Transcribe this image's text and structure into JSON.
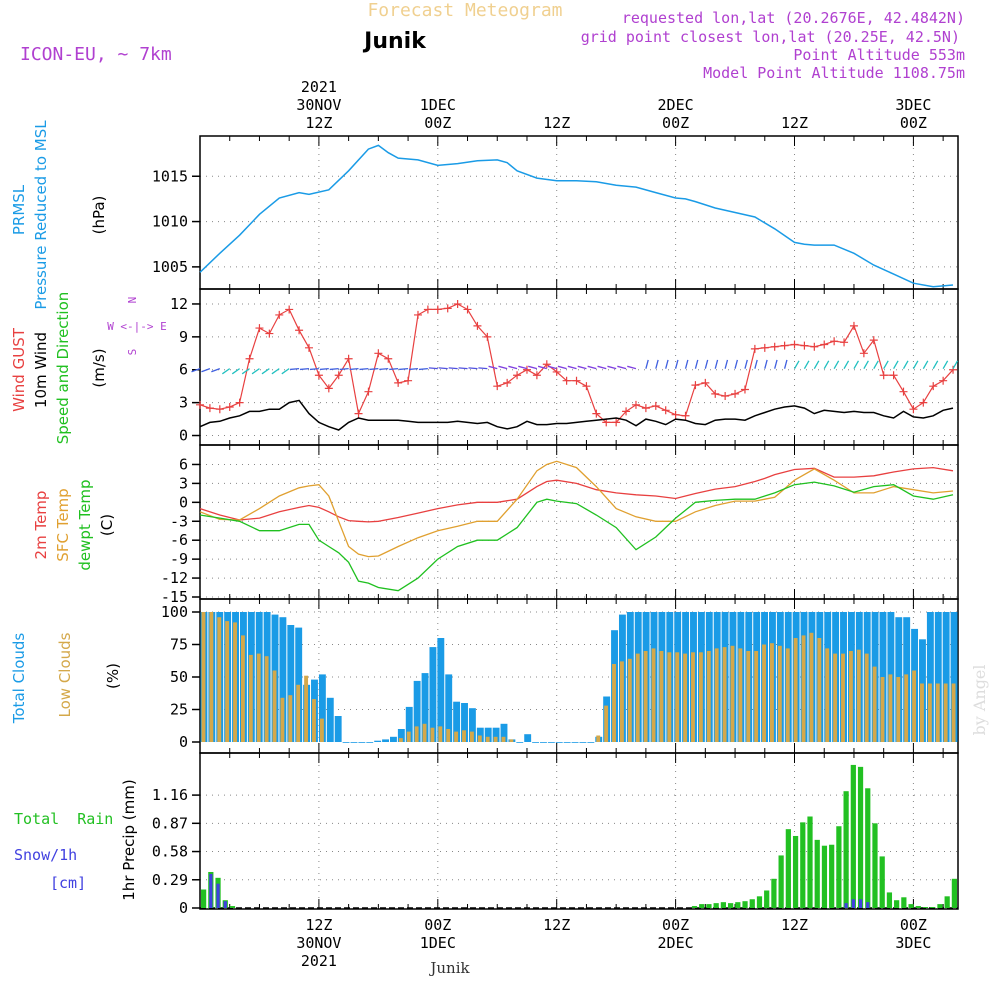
{
  "header": {
    "banner": "Forecast Meteogram",
    "location": "Junik",
    "model": "ICON-EU, ~ 7km",
    "requested": "requested lon,lat (20.2676E, 42.4842N)",
    "closest": "grid point closest lon,lat (20.25E, 42.5N)",
    "point_alt": "Point Altitude 553m",
    "model_alt": "Model Point Altitude 1108.75m",
    "credit": "by Angel",
    "footer_location": "Junik"
  },
  "colors": {
    "pressure": "#1a9be6",
    "gust": "#e84040",
    "wind": "#000000",
    "temp2m": "#e84040",
    "sfc": "#e0a030",
    "dew": "#20c020",
    "total_cloud": "#1a9be6",
    "low_cloud": "#d4a84a",
    "rain": "#22c022",
    "snow": "#4040e0",
    "purple": "#b040d0"
  },
  "time_axis": {
    "top": [
      {
        "t": 12,
        "lines": [
          "2021",
          "30NOV",
          "12Z"
        ]
      },
      {
        "t": 24,
        "lines": [
          "1DEC",
          "00Z"
        ]
      },
      {
        "t": 36,
        "lines": [
          "12Z"
        ]
      },
      {
        "t": 48,
        "lines": [
          "2DEC",
          "00Z"
        ]
      },
      {
        "t": 60,
        "lines": [
          "12Z"
        ]
      },
      {
        "t": 72,
        "lines": [
          "3DEC",
          "00Z"
        ]
      }
    ],
    "bottom": [
      {
        "t": 12,
        "lines": [
          "12Z",
          "30NOV",
          "2021"
        ]
      },
      {
        "t": 24,
        "lines": [
          "00Z",
          "1DEC"
        ]
      },
      {
        "t": 36,
        "lines": [
          "12Z"
        ]
      },
      {
        "t": 48,
        "lines": [
          "00Z",
          "2DEC"
        ]
      },
      {
        "t": 60,
        "lines": [
          "12Z"
        ]
      },
      {
        "t": 72,
        "lines": [
          "00Z",
          "3DEC"
        ]
      }
    ]
  },
  "panel_labels": {
    "pressure": {
      "l1": "PRMSL",
      "l2": "Pressure Reduced to MSL",
      "unit": "(hPa)"
    },
    "wind": {
      "l1": "Wind GUST",
      "l2": "10m Wind",
      "l3": "Speed and Direction",
      "unit": "(m/s)",
      "compass_n": "N",
      "compass_we": "W <-|-> E",
      "compass_s": "S"
    },
    "temp": {
      "l1": "2m Temp",
      "l2": "SFC Temp",
      "l3": "dewpt Temp",
      "unit": "(C)"
    },
    "cloud": {
      "l1": "Total Clouds",
      "l2": "Low Clouds",
      "unit": "(%)"
    },
    "precip": {
      "l1": "Total  Rain",
      "l2": "Snow/1h",
      "l3": "[cm]",
      "unit": "1hr Precip (mm)"
    }
  },
  "chart_data": [
    {
      "type": "line",
      "name": "PRMSL",
      "ylim": [
        1003,
        1019
      ],
      "yticks": [
        1005,
        1010,
        1015
      ],
      "x": [
        0,
        2,
        4,
        6,
        8,
        10,
        11,
        13,
        15,
        17,
        18,
        19,
        20,
        22,
        24,
        26,
        28,
        30,
        31,
        32,
        34,
        36,
        38,
        40,
        42,
        44,
        46,
        48,
        49,
        50,
        52,
        54,
        56,
        58,
        60,
        61,
        62,
        64,
        66,
        68,
        70,
        72,
        74,
        75,
        76
      ],
      "series": [
        {
          "values": [
            1004.4,
            1006.5,
            1008.5,
            1010.8,
            1012.6,
            1013.2,
            1013.0,
            1013.5,
            1015.6,
            1018.0,
            1018.4,
            1017.6,
            1017.0,
            1016.8,
            1016.2,
            1016.4,
            1016.7,
            1016.8,
            1016.5,
            1015.6,
            1014.8,
            1014.5,
            1014.5,
            1014.4,
            1014.0,
            1013.8,
            1013.2,
            1012.6,
            1012.5,
            1012.2,
            1011.5,
            1011.0,
            1010.5,
            1009.2,
            1007.7,
            1007.5,
            1007.4,
            1007.4,
            1006.5,
            1005.2,
            1004.2,
            1003.2,
            1002.8,
            1002.9,
            1003.0
          ]
        }
      ]
    },
    {
      "type": "line",
      "name": "Wind",
      "ylim": [
        -0.5,
        13
      ],
      "yticks": [
        0,
        3,
        6,
        9,
        12
      ],
      "x": [
        0,
        1,
        2,
        3,
        4,
        5,
        6,
        7,
        8,
        9,
        10,
        11,
        12,
        13,
        14,
        15,
        16,
        17,
        18,
        19,
        20,
        21,
        22,
        23,
        24,
        25,
        26,
        27,
        28,
        29,
        30,
        31,
        32,
        33,
        34,
        35,
        36,
        37,
        38,
        39,
        40,
        41,
        42,
        43,
        44,
        45,
        46,
        47,
        48,
        49,
        50,
        51,
        52,
        53,
        54,
        55,
        56,
        57,
        58,
        59,
        60,
        61,
        62,
        63,
        64,
        65,
        66,
        67,
        68,
        69,
        70,
        71,
        72,
        73,
        74,
        75,
        76
      ],
      "series": [
        {
          "name": "Wind GUST",
          "values": [
            2.8,
            2.5,
            2.4,
            2.6,
            3.0,
            7.0,
            9.8,
            9.3,
            11.0,
            11.5,
            9.6,
            8.0,
            5.5,
            4.3,
            5.5,
            7.0,
            2.0,
            4.0,
            7.5,
            7.0,
            4.8,
            5.0,
            11.0,
            11.5,
            11.5,
            11.6,
            12.0,
            11.5,
            10.0,
            9.0,
            4.5,
            4.8,
            5.5,
            6.0,
            5.5,
            6.5,
            5.8,
            5.0,
            5.0,
            4.5,
            2.0,
            1.2,
            1.2,
            2.2,
            2.8,
            2.5,
            2.7,
            2.3,
            1.9,
            1.8,
            4.6,
            4.8,
            3.8,
            3.6,
            3.8,
            4.2,
            7.9,
            8.0,
            8.1,
            8.2,
            8.3,
            8.2,
            8.1,
            8.3,
            8.6,
            8.5,
            10.0,
            7.5,
            8.7,
            5.5,
            5.5,
            4.0,
            2.4,
            3.0,
            4.5,
            5.0,
            6.0
          ]
        },
        {
          "name": "10m Wind",
          "values": [
            0.8,
            1.2,
            1.3,
            1.6,
            1.8,
            2.2,
            2.2,
            2.4,
            2.4,
            3.0,
            3.2,
            2.0,
            1.2,
            0.8,
            0.5,
            1.2,
            1.6,
            1.4,
            1.4,
            1.4,
            1.4,
            1.3,
            1.2,
            1.2,
            1.2,
            1.2,
            1.3,
            1.2,
            1.1,
            1.2,
            0.8,
            0.6,
            0.8,
            1.3,
            1.0,
            1.0,
            1.1,
            1.1,
            1.2,
            1.3,
            1.4,
            1.5,
            1.6,
            1.4,
            0.9,
            1.5,
            1.3,
            1.0,
            1.5,
            1.4,
            1.1,
            1.0,
            1.4,
            1.5,
            1.5,
            1.4,
            1.8,
            2.1,
            2.4,
            2.6,
            2.7,
            2.5,
            2.0,
            2.3,
            2.2,
            2.1,
            2.2,
            2.1,
            2.1,
            1.8,
            1.6,
            2.2,
            1.7,
            1.6,
            1.8,
            2.3,
            2.5
          ]
        }
      ]
    },
    {
      "type": "line",
      "name": "Temperature",
      "ylim": [
        -15,
        7.5
      ],
      "yticks": [
        -15,
        -12,
        -9,
        -6,
        -3,
        0,
        3,
        6
      ],
      "x": [
        0,
        2,
        4,
        6,
        8,
        10,
        11,
        12,
        13,
        14,
        15,
        16,
        17,
        18,
        20,
        22,
        24,
        26,
        28,
        30,
        32,
        34,
        35,
        36,
        38,
        40,
        42,
        44,
        46,
        48,
        50,
        52,
        54,
        56,
        57,
        58,
        60,
        62,
        64,
        66,
        68,
        70,
        72,
        74,
        76
      ],
      "series": [
        {
          "name": "2m Temp",
          "values": [
            -1.0,
            -2.0,
            -2.8,
            -2.5,
            -1.5,
            -0.8,
            -0.5,
            -0.8,
            -1.5,
            -2.3,
            -2.9,
            -3.0,
            -3.1,
            -3.0,
            -2.4,
            -1.7,
            -1.0,
            -0.4,
            0.0,
            0.0,
            0.5,
            2.5,
            3.3,
            3.5,
            3.0,
            2.0,
            1.5,
            1.2,
            1.0,
            0.6,
            1.4,
            2.1,
            2.5,
            3.3,
            3.8,
            4.4,
            5.2,
            5.4,
            4.0,
            4.0,
            4.2,
            4.8,
            5.3,
            5.5,
            5.0
          ]
        },
        {
          "name": "SFC Temp",
          "values": [
            -1.5,
            -2.7,
            -2.8,
            -1.0,
            1.0,
            2.3,
            2.6,
            2.8,
            1.0,
            -3.0,
            -7.0,
            -8.2,
            -8.6,
            -8.5,
            -7.0,
            -5.6,
            -4.5,
            -3.8,
            -3.0,
            -3.0,
            0.5,
            5.0,
            6.0,
            6.5,
            5.5,
            2.5,
            -1.0,
            -2.3,
            -3.0,
            -3.0,
            -1.5,
            -0.5,
            0.2,
            0.2,
            0.5,
            0.8,
            3.5,
            5.3,
            3.5,
            1.5,
            1.5,
            2.5,
            2.0,
            1.5,
            1.8
          ]
        },
        {
          "name": "dewpt Temp",
          "values": [
            -2.0,
            -2.5,
            -3.0,
            -4.5,
            -4.5,
            -3.5,
            -3.5,
            -6.0,
            -7.0,
            -8.0,
            -9.5,
            -12.5,
            -12.8,
            -13.5,
            -14.0,
            -12.0,
            -9.0,
            -7.0,
            -6.0,
            -6.0,
            -4.0,
            0.0,
            0.5,
            0.2,
            -0.2,
            -2.0,
            -4.0,
            -7.5,
            -5.5,
            -2.5,
            0.0,
            0.3,
            0.5,
            0.5,
            1.0,
            1.5,
            2.8,
            3.2,
            2.6,
            1.6,
            2.5,
            2.8,
            1.0,
            0.5,
            1.2
          ]
        }
      ]
    },
    {
      "type": "bar",
      "name": "Clouds",
      "ylim": [
        0,
        100
      ],
      "yticks": [
        0,
        25,
        50,
        75,
        100
      ],
      "x_start": 0,
      "x_step": 1,
      "series": [
        {
          "name": "Total Clouds",
          "values": [
            100,
            100,
            100,
            100,
            100,
            100,
            100,
            100,
            100,
            98,
            96,
            90,
            88,
            44,
            48,
            52,
            34,
            20,
            0,
            0,
            0,
            0,
            1,
            2,
            4,
            10,
            27,
            47,
            53,
            73,
            80,
            52,
            31,
            30,
            26,
            11,
            11,
            11,
            14,
            2,
            0,
            6,
            0,
            0,
            0,
            0,
            0,
            0,
            0,
            0,
            4,
            35,
            86,
            98,
            100,
            100,
            100,
            100,
            100,
            100,
            100,
            100,
            100,
            100,
            100,
            100,
            100,
            100,
            100,
            100,
            100,
            100,
            100,
            100,
            100,
            100,
            100,
            100,
            100,
            100,
            100,
            100,
            100,
            100,
            100,
            100,
            100,
            100,
            96,
            96,
            87,
            79,
            100,
            100,
            100,
            100
          ]
        },
        {
          "name": "Low Clouds",
          "values": [
            100,
            100,
            96,
            93,
            92,
            82,
            67,
            68,
            66,
            55,
            34,
            36,
            44,
            51,
            33,
            18,
            0,
            0,
            0,
            0,
            0,
            0,
            0,
            0,
            0,
            3,
            8,
            12,
            14,
            11,
            12,
            10,
            8,
            9,
            8,
            5,
            4,
            4,
            4,
            2,
            0,
            0,
            0,
            0,
            0,
            0,
            0,
            0,
            0,
            0,
            5,
            28,
            60,
            62,
            64,
            68,
            70,
            72,
            70,
            69,
            69,
            68,
            69,
            69,
            70,
            72,
            73,
            74,
            72,
            70,
            70,
            75,
            76,
            74,
            72,
            80,
            82,
            84,
            80,
            72,
            68,
            68,
            70,
            71,
            68,
            58,
            50,
            52,
            50,
            52,
            55,
            45,
            45,
            45,
            45,
            45
          ]
        }
      ]
    },
    {
      "type": "bar",
      "name": "Precipitation",
      "ylim": [
        0,
        1.5
      ],
      "yticks": [
        0,
        0.29,
        0.58,
        0.87,
        1.16
      ],
      "x_start": 0,
      "x_step": 1,
      "series": [
        {
          "name": "Total Rain",
          "values": [
            0.19,
            0.37,
            0.31,
            0.08,
            0.02,
            0,
            0,
            0,
            0,
            0,
            0,
            0,
            0,
            0,
            0,
            0,
            0,
            0,
            0,
            0,
            0,
            0,
            0,
            0,
            0,
            0,
            0,
            0,
            0,
            0,
            0,
            0,
            0,
            0,
            0,
            0,
            0,
            0,
            0,
            0,
            0,
            0,
            0,
            0,
            0,
            0,
            0,
            0,
            0,
            0,
            0,
            0,
            0,
            0,
            0,
            0,
            0,
            0,
            0,
            0,
            0,
            0,
            0,
            0,
            0,
            0,
            0,
            0,
            0.02,
            0.04,
            0.04,
            0.05,
            0.06,
            0.05,
            0.06,
            0.07,
            0.09,
            0.12,
            0.18,
            0.3,
            0.54,
            0.81,
            0.74,
            0.88,
            0.94,
            0.7,
            0.64,
            0.65,
            0.84,
            1.2,
            1.47,
            1.45,
            1.23,
            0.87,
            0.53,
            0.16,
            0.08,
            0.11,
            0.04,
            0.02,
            0.01,
            0.01,
            0.04,
            0.12,
            0.3
          ]
        },
        {
          "name": "Snow/1h",
          "values": [
            0,
            0.35,
            0.25,
            0.07,
            0,
            0,
            0,
            0,
            0,
            0,
            0,
            0,
            0,
            0,
            0,
            0,
            0,
            0,
            0,
            0,
            0,
            0,
            0,
            0,
            0,
            0,
            0,
            0,
            0,
            0,
            0,
            0,
            0,
            0,
            0,
            0,
            0,
            0,
            0,
            0,
            0,
            0,
            0,
            0,
            0,
            0,
            0,
            0,
            0,
            0,
            0,
            0,
            0,
            0,
            0,
            0,
            0,
            0,
            0,
            0,
            0,
            0,
            0,
            0,
            0,
            0,
            0,
            0,
            0,
            0,
            0,
            0,
            0,
            0,
            0,
            0,
            0,
            0,
            0,
            0,
            0,
            0,
            0,
            0,
            0,
            0,
            0,
            0,
            0,
            0.05,
            0.09,
            0.09,
            0.06,
            0,
            0,
            0,
            0,
            0,
            0,
            0,
            0,
            0,
            0,
            0,
            0
          ]
        }
      ]
    }
  ]
}
